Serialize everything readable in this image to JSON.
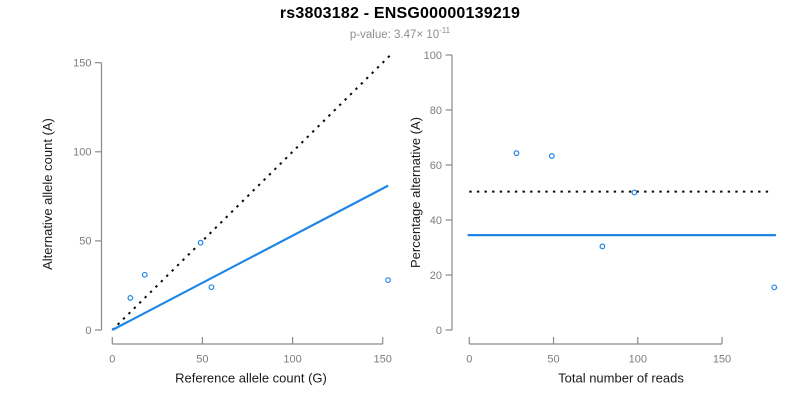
{
  "header": {
    "title": "rs3803182 - ENSG00000139219",
    "subtitle": {
      "prefix": "p-value: ",
      "mantissa": "3.47",
      "times": "×",
      "base": "10",
      "exponent": "-11"
    }
  },
  "colors": {
    "point_blue": "#1E86E5",
    "regression_blue": "#1E86E5",
    "dotted_black": "#0a0a0a",
    "axis_line_gray": "#8a8a8a",
    "tick_text_gray": "#7d7d7d",
    "axis_title_black": "#1a1a1a",
    "title_black": "#000000",
    "subtitle_gray": "#8e8e8e"
  },
  "chart_data": [
    {
      "type": "scatter",
      "side": "left",
      "xlabel": "Reference allele count (G)",
      "ylabel": "Alternative allele count (A)",
      "x_ticks": [
        0,
        50,
        100,
        150
      ],
      "y_ticks": [
        0,
        50,
        100,
        150
      ],
      "xlim": [
        0,
        155
      ],
      "ylim": [
        0,
        155
      ],
      "grid": false,
      "points": [
        [
          10,
          18
        ],
        [
          18,
          31
        ],
        [
          49,
          49
        ],
        [
          55,
          24
        ],
        [
          153,
          28
        ]
      ],
      "lines": [
        {
          "name": "identity-line",
          "style": "dotted",
          "color": "#0a0a0a",
          "x1": 0,
          "y1": 0,
          "x2": 154,
          "y2": 154
        },
        {
          "name": "regression-line",
          "style": "solid",
          "color": "#1E86E5",
          "x1": 0,
          "y1": 0,
          "x2": 153,
          "y2": 81
        }
      ]
    },
    {
      "type": "scatter",
      "side": "right",
      "xlabel": "Total number of reads",
      "ylabel": "Percentage alternative (A)",
      "x_ticks": [
        0,
        50,
        100,
        150
      ],
      "y_ticks": [
        0,
        20,
        40,
        60,
        80,
        100
      ],
      "xlim": [
        0,
        185
      ],
      "ylim": [
        0,
        100
      ],
      "grid": false,
      "points": [
        [
          28,
          64.3
        ],
        [
          49,
          63.3
        ],
        [
          98,
          50
        ],
        [
          79,
          30.4
        ],
        [
          181,
          15.5
        ]
      ],
      "lines": [
        {
          "name": "fifty-percent-line",
          "style": "dotted",
          "color": "#0a0a0a",
          "x1": 0,
          "y1": 50.3,
          "x2": 178,
          "y2": 50.3
        },
        {
          "name": "mean-percentage-line",
          "style": "solid",
          "color": "#1E86E5",
          "x1": -1,
          "y1": 34.5,
          "x2": 182,
          "y2": 34.5
        }
      ]
    }
  ]
}
